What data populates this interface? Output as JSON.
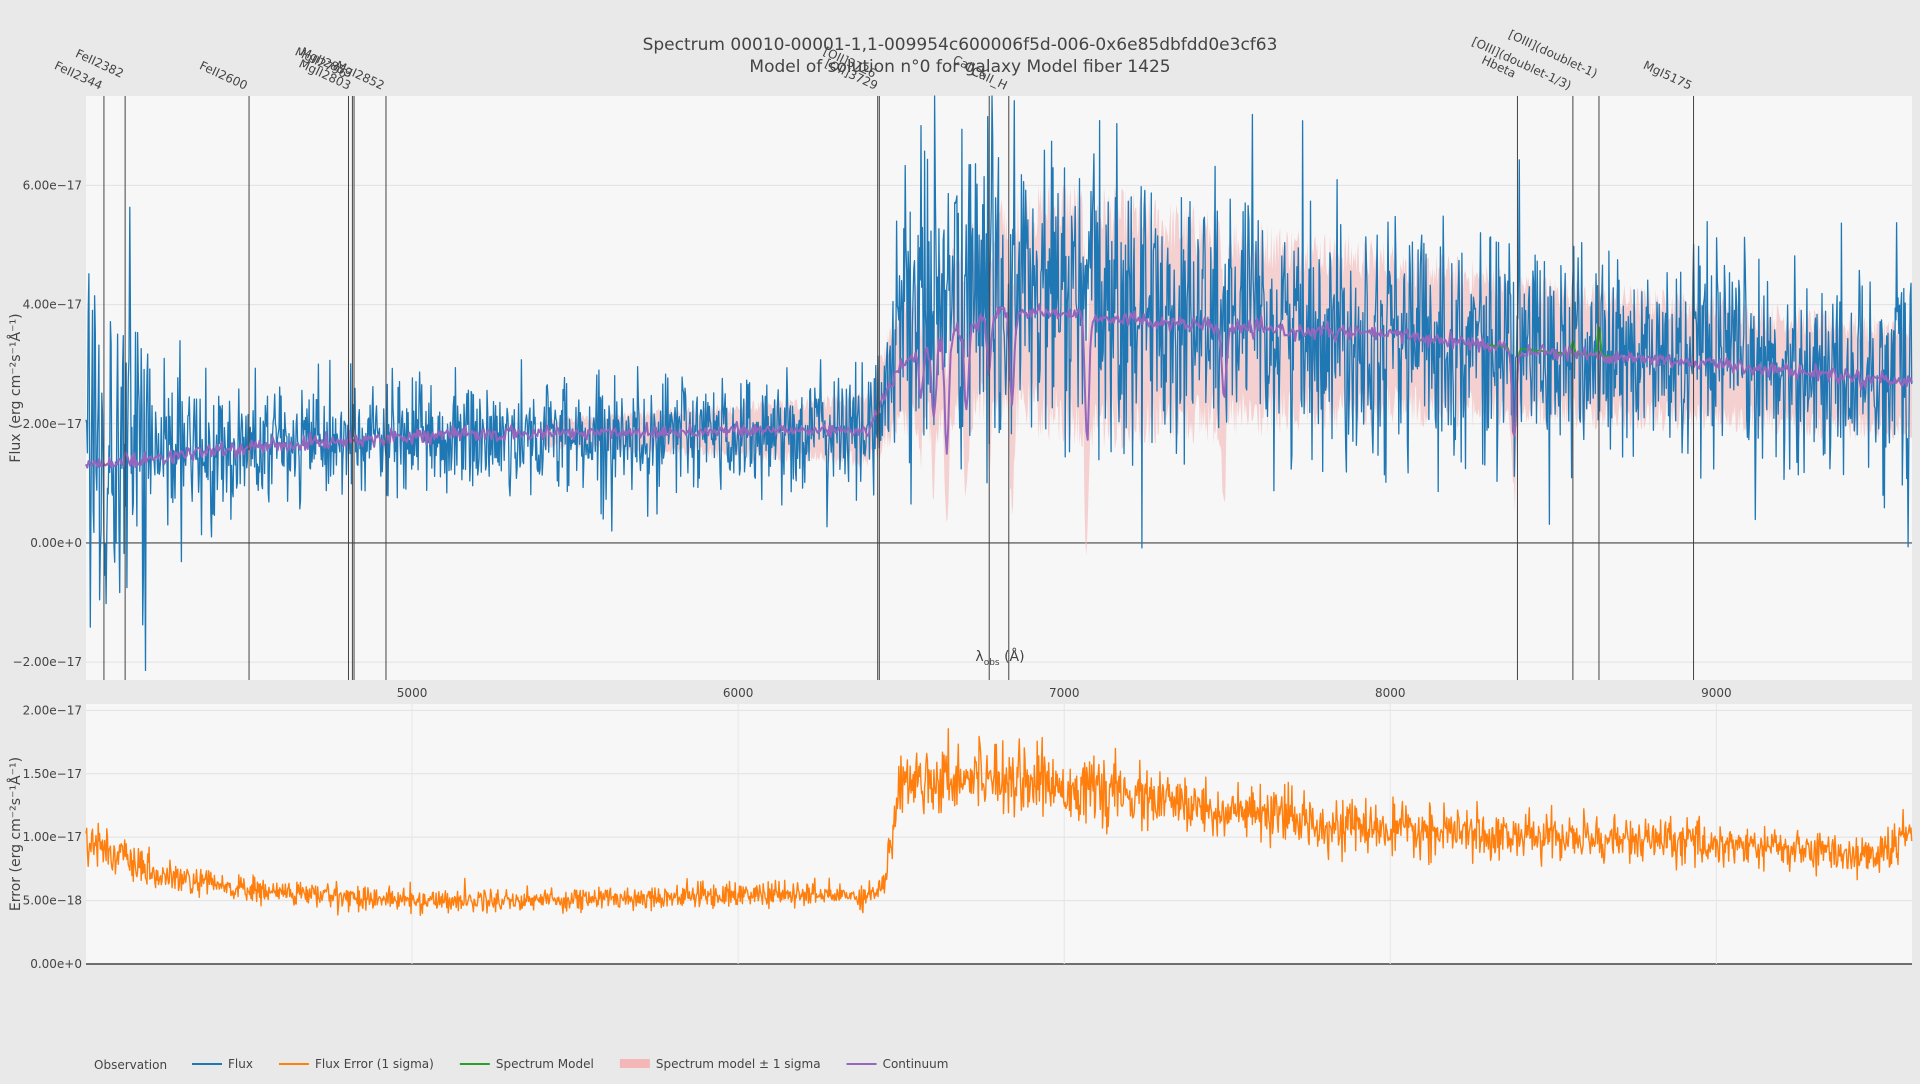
{
  "chart_data": {
    "type": "line",
    "title": "Spectrum 00010-00001-1,1-009954c600006f5d-006-0x6e85dbfdd0e3cf63",
    "subtitle": "Model of solution n°0 for galaxy Model fiber 1425",
    "x_axis": {
      "label": "λobs (Å)",
      "label_main": "λ",
      "label_sub": "obs",
      "label_tail": " (Å)",
      "range": [
        4000,
        9600
      ],
      "ticks": [
        5000,
        6000,
        7000,
        8000,
        9000
      ],
      "tick_labels": [
        "5000",
        "6000",
        "7000",
        "8000",
        "9000"
      ]
    },
    "panels": [
      {
        "name": "flux-panel",
        "ylabel": "Flux (erg cm⁻²s⁻¹Å⁻¹)",
        "ylim": [
          -2.3e-17,
          7.5e-17
        ],
        "y_ticks": [
          -2e-17,
          0,
          2e-17,
          4e-17,
          6e-17
        ],
        "y_tick_labels": [
          "−2.00e−17",
          "0.00e+0",
          "2.00e−17",
          "4.00e−17",
          "6.00e−17"
        ]
      },
      {
        "name": "error-panel",
        "ylabel": "Error (erg cm⁻²s⁻¹Å⁻¹)",
        "ylim": [
          0,
          2.05e-17
        ],
        "y_ticks": [
          0,
          5e-18,
          1e-17,
          1.5e-17,
          2e-17
        ],
        "y_tick_labels": [
          "0.00e+0",
          "5.00e−18",
          "1.00e−17",
          "1.50e−17",
          "2.00e−17"
        ]
      }
    ],
    "series": [
      {
        "name": "Flux",
        "color": "#1f77b4",
        "panel": 0,
        "kind": "line"
      },
      {
        "name": "Flux Error (1 sigma)",
        "color": "#ff7f0e",
        "panel": 1,
        "kind": "line"
      },
      {
        "name": "Spectrum Model",
        "color": "#2ca02c",
        "panel": 0,
        "kind": "line"
      },
      {
        "name": "Spectrum model ± 1 sigma",
        "color": "#f4b6b6",
        "panel": 0,
        "kind": "band"
      },
      {
        "name": "Continuum",
        "color": "#9467bd",
        "panel": 0,
        "kind": "line"
      }
    ],
    "flux_series": {
      "wavelength_sampled": [
        4000,
        4500,
        5000,
        5500,
        6000,
        6400,
        6450,
        6500,
        6800,
        7000,
        7500,
        8000,
        8500,
        9000,
        9500,
        9600
      ],
      "flux": [
        1.4e-17,
        1.6e-17,
        1.75e-17,
        1.8e-17,
        1.85e-17,
        1.9e-17,
        2.5e-17,
        4e-17,
        4.2e-17,
        4.1e-17,
        3.7e-17,
        3.5e-17,
        3.2e-17,
        3e-17,
        2.8e-17,
        2.7e-17
      ]
    },
    "continuum_series": {
      "wavelength_sampled": [
        4000,
        4500,
        5000,
        5500,
        6000,
        6400,
        6500,
        6800,
        7000,
        7500,
        8000,
        8500,
        9000,
        9500,
        9600
      ],
      "values": [
        1.3e-17,
        1.6e-17,
        1.8e-17,
        1.85e-17,
        1.88e-17,
        1.9e-17,
        3e-17,
        3.9e-17,
        3.85e-17,
        3.6e-17,
        3.5e-17,
        3.2e-17,
        3e-17,
        2.75e-17,
        2.7e-17
      ]
    },
    "continuum_absorption_dips": [
      {
        "x": 6560,
        "depth": 7e-18
      },
      {
        "x": 6600,
        "depth": 1.2e-17
      },
      {
        "x": 6640,
        "depth": 1.9e-17
      },
      {
        "x": 6700,
        "depth": 1.4e-17
      },
      {
        "x": 6770,
        "depth": 9e-18
      },
      {
        "x": 6840,
        "depth": 1.6e-17
      },
      {
        "x": 7070,
        "depth": 2.1e-17
      },
      {
        "x": 7490,
        "depth": 1.2e-17
      },
      {
        "x": 8380,
        "depth": 1.5e-17
      }
    ],
    "model_band_half_width": [
      {
        "x": 5400,
        "v": 2e-18
      },
      {
        "x": 6400,
        "v": 5e-18
      },
      {
        "x": 6500,
        "v": 1e-17
      },
      {
        "x": 7000,
        "v": 1.8e-17
      },
      {
        "x": 7500,
        "v": 1.5e-17
      },
      {
        "x": 8000,
        "v": 1.2e-17
      },
      {
        "x": 8500,
        "v": 1e-17
      },
      {
        "x": 9000,
        "v": 9e-18
      },
      {
        "x": 9600,
        "v": 8e-18
      }
    ],
    "error_series": {
      "wavelength_sampled": [
        4000,
        4200,
        4500,
        5000,
        5500,
        6000,
        6400,
        6450,
        6500,
        6800,
        7000,
        7500,
        8000,
        8500,
        9000,
        9500,
        9600
      ],
      "values": [
        1e-17,
        7e-18,
        5.8e-18,
        5e-18,
        5.1e-18,
        5.5e-18,
        5.4e-18,
        6.5e-18,
        1.45e-17,
        1.5e-17,
        1.4e-17,
        1.2e-17,
        1.05e-17,
        1e-17,
        9.5e-18,
        8.5e-18,
        1.05e-17
      ]
    },
    "spectral_lines": [
      {
        "name": "FeII2344",
        "x": 4055
      },
      {
        "name": "FeII2382",
        "x": 4120
      },
      {
        "name": "FeII2600",
        "x": 4500
      },
      {
        "name": "MgII2796",
        "x": 4805
      },
      {
        "name": "MgII2803",
        "x": 4817
      },
      {
        "name": "MgII2853",
        "x": 4822
      },
      {
        "name": "MgI2852",
        "x": 4920
      },
      {
        "name": "[OII]3726",
        "x": 6428
      },
      {
        "name": "[OII]3729",
        "x": 6433
      },
      {
        "name": "CaII_K",
        "x": 6770
      },
      {
        "name": "CaII_H",
        "x": 6830
      },
      {
        "name": "Hbeta",
        "x": 8390
      },
      {
        "name": "[OIII](doublet-1/3)",
        "x": 8560
      },
      {
        "name": "[OIII](doublet-1)",
        "x": 8640
      },
      {
        "name": "MgI5175",
        "x": 8930
      }
    ],
    "legend": {
      "title": "Observation",
      "placement": "bottom-left",
      "orientation": "horizontal"
    }
  }
}
